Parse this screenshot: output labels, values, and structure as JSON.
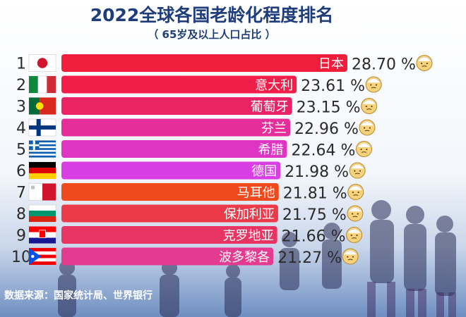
{
  "chart_data": {
    "type": "bar",
    "orientation": "horizontal",
    "title": "2022全球各国老龄化程度排名",
    "subtitle": "（ 65岁及以上人口占比 ）",
    "ranks": [
      "1",
      "2",
      "3",
      "4",
      "5",
      "6",
      "7",
      "8",
      "9",
      "10"
    ],
    "categories": [
      "日本",
      "意大利",
      "葡萄牙",
      "芬兰",
      "希腊",
      "德国",
      "马耳他",
      "保加利亚",
      "克罗地亚",
      "波多黎各"
    ],
    "values": [
      28.7,
      23.61,
      23.15,
      22.96,
      22.64,
      21.98,
      21.81,
      21.75,
      21.66,
      21.27
    ],
    "value_labels": [
      "28.70 %",
      "23.61 %",
      "23.15 %",
      "22.96 %",
      "22.64 %",
      "21.98 %",
      "21.81 %",
      "21.75 %",
      "21.66 %",
      "21.27 %"
    ],
    "flags": [
      "japan-flag",
      "italy-flag",
      "portugal-flag",
      "finland-flag",
      "greece-flag",
      "germany-flag",
      "malta-flag",
      "bulgaria-flag",
      "croatia-flag",
      "puerto-rico-flag"
    ],
    "bar_colors": [
      "#f01e3a",
      "#f01e48",
      "#ea2364",
      "#e52e9a",
      "#df35c4",
      "#d93ee4",
      "#ef4a1e",
      "#ec3a4a",
      "#e83463",
      "#e43a8f"
    ]
  },
  "source": "数据来源：国家统计局、世界银行"
}
